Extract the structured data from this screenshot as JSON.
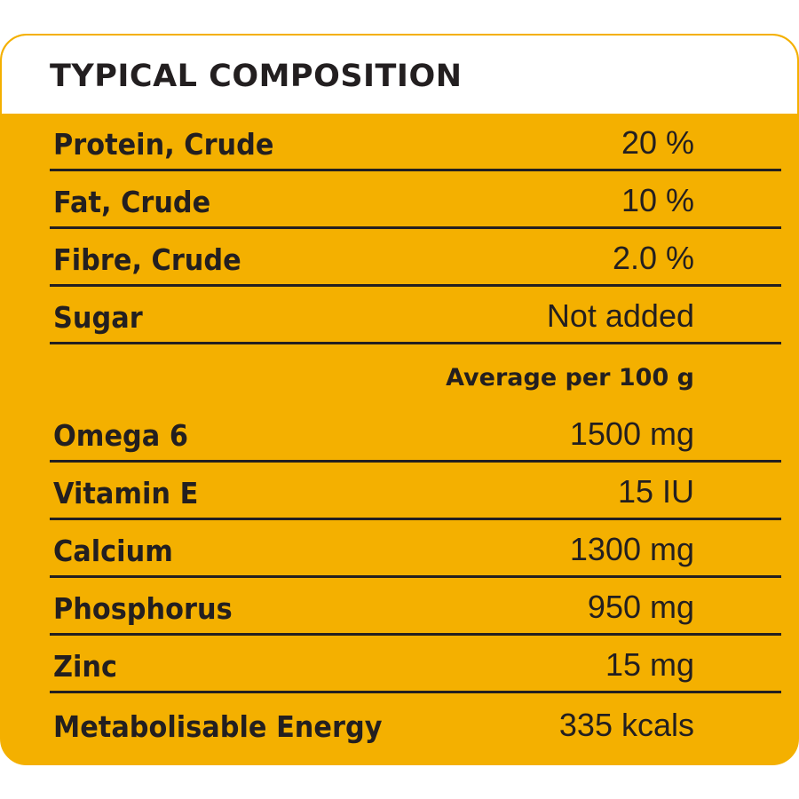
{
  "title": "TYPICAL COMPOSITION",
  "per_label": "Average per 100 g",
  "rows": [
    {
      "label": "Protein, Crude",
      "value": "20 %"
    },
    {
      "label": "Fat, Crude",
      "value": "10 %"
    },
    {
      "label": "Fibre, Crude",
      "value": "2.0 %"
    },
    {
      "label": "Sugar",
      "value": "Not added"
    },
    {
      "label": "Omega 6",
      "value": "1500 mg"
    },
    {
      "label": "Vitamin E",
      "value": "15 IU"
    },
    {
      "label": "Calcium",
      "value": "1300 mg"
    },
    {
      "label": "Phosphorus",
      "value": "950 mg"
    },
    {
      "label": "Zinc",
      "value": "15 mg"
    },
    {
      "label": "Metabolisable Energy",
      "value": "335 kcals"
    }
  ],
  "colors": {
    "panel": "#f4b000",
    "text": "#231f20",
    "header_bg": "#ffffff"
  }
}
